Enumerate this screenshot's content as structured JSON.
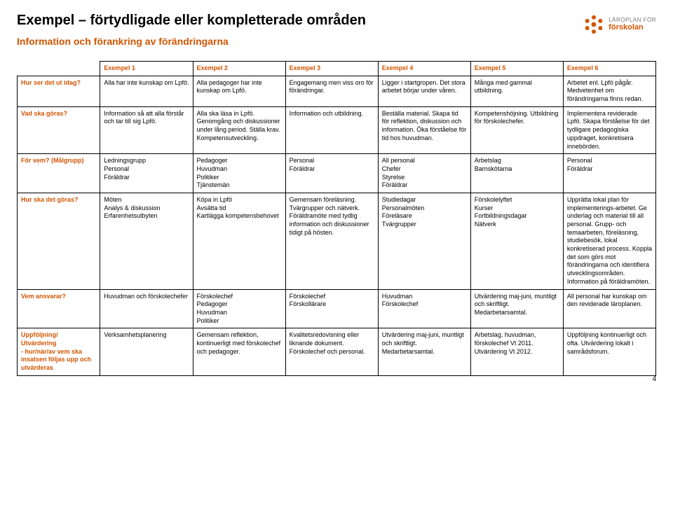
{
  "title": "Exempel – förtydligade eller kompletterade områden",
  "subtitle": "Information och förankring av förändringarna",
  "logo": {
    "top": "LÄROPLAN FÖR",
    "bottom": "förskolan"
  },
  "page_number": "4",
  "accent_color": "#D35400",
  "columns": [
    "",
    "Exempel 1",
    "Exempel 2",
    "Exempel 3",
    "Exempel 4",
    "Exempel 5",
    "Exempel 6"
  ],
  "rows": [
    {
      "label": "Hur ser det ut idag?",
      "cells": [
        "Alla har inte kunskap om Lpfö.",
        "Alla pedagoger har inte kunskap om Lpfö.",
        "Engagemang men viss oro för förändringar.",
        "Ligger i startgropen. Det stora arbetet börjar under våren.",
        "Många med gammal utbildning.",
        "Arbetet enl. Lpfö pågår. Medvetenhet om förändringarna finns redan."
      ]
    },
    {
      "label": "Vad ska göras?",
      "cells": [
        "Information så att alla förstår och tar till sig Lpfö.",
        "Alla ska läsa in Lpfö. Genomgång och diskussioner under lång period. Ställa krav. Kompetensutveckling.",
        "Information och utbildning.",
        "Beställa material. Skapa tid för reflektion, diskussion och information. Öka förståelse för tid hos huvudman.",
        "Kompetenshöjning. Utbildning för förskolechefer.",
        "Implementera reviderade Lpfö. Skapa förståelse för det tydligare pedagogiska uppdraget, konkretisera innebörden."
      ]
    },
    {
      "label": "För vem? (Målgrupp)",
      "cells": [
        "Ledningsgrupp\nPersonal\nFöräldrar",
        "Pedagoger\nHuvudman\nPolitiker\nTjänstemän",
        "Personal\nFöräldrar",
        "All personal\nChefer\nStyrelse\nFöräldrar",
        "Arbetslag\nBarnskötarna",
        "Personal\nFöräldrar"
      ]
    },
    {
      "label": "Hur ska det göras?",
      "cells": [
        "Möten\nAnalys & diskussion\nErfarenhetsutbyten",
        "Köpa in Lpfö\nAvsätta tid\nKartlägga kompetensbehovet",
        "Gemensam föreläsning.\nTvärgrupper och nätverk.\nFöräldramöte med tydlig information och diskussioner tidigt på hösten.",
        "Studiedagar\nPersonalmöten\nFöreläsare\nTvärgrupper",
        "Förskolelyftet\nKurser\nFortbildningsdagar\nNätverk",
        "Upprätta lokal plan för implementerings-arbetet. Ge underlag och material till all personal. Grupp- och temaarbeten, föreläsning, studiebesök, lokal konkretiserad process. Koppla det som görs mot förändringarna och identifiera utvecklingsområden. Information på föräldramöten."
      ]
    },
    {
      "label": "Vem ansvarar?",
      "cells": [
        "Huvudman och förskolechefer",
        "Förskolechef\nPedagoger\nHuvudman\nPolitiker",
        "Förskolechef\nFörskollärare",
        "Huvudman\nFörskolechef",
        "Utvärdering maj-juni, muntligt och skriftligt. Medarbetarsamtal.",
        "All personal har kunskap om den reviderade läroplanen."
      ]
    },
    {
      "label": "Uppföljning/\nUtvärdering\n- hur/när/av vem ska insatsen följas upp och utvärderas",
      "cells": [
        "Verksamhetsplanering",
        "Gemensam reflektion, kontinuerligt med förskolechef och pedagoger.",
        "Kvalitetsredovisning eller liknande dokument.\nFörskolechef och personal.",
        "Utvärdering maj-juni, muntligt och skriftligt. Medarbetarsamtal.",
        "Arbetslag, huvudman, förskolechef Vt 2011. Utvärdering Vt 2012.",
        "Uppföljning kontinuerligt och ofta. Utvärdering lokalt i samrådsforum."
      ]
    }
  ]
}
